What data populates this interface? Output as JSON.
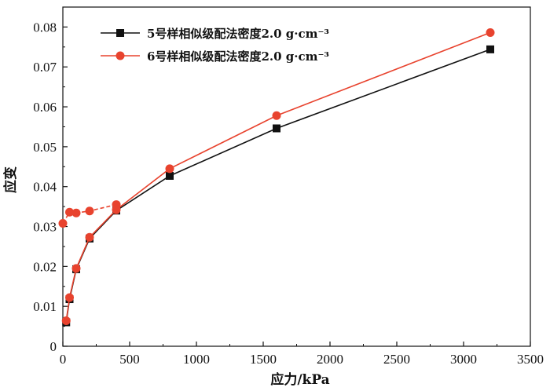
{
  "chart_data": {
    "type": "line",
    "xlabel": "应力/kPa",
    "ylabel": "应变",
    "xlim": [
      0,
      3500
    ],
    "ylim": [
      0,
      0.085
    ],
    "xticks": [
      0,
      500,
      1000,
      1500,
      2000,
      2500,
      3000,
      3500
    ],
    "yticks": [
      0,
      0.01,
      0.02,
      0.03,
      0.04,
      0.05,
      0.06,
      0.07,
      0.08
    ],
    "xtick_labels": [
      "0",
      "500",
      "1000",
      "1500",
      "2000",
      "2500",
      "3000",
      "3500"
    ],
    "ytick_labels": [
      "0",
      "0.01",
      "0.02",
      "0.03",
      "0.04",
      "0.05",
      "0.06",
      "0.07",
      "0.08"
    ],
    "legend_position": "top-left",
    "grid": false,
    "series": [
      {
        "name": "5号样相似级配法密度2.0 g·cm⁻³",
        "color": "#111111",
        "marker": "square",
        "points": [
          {
            "x": 25,
            "y": 0.006
          },
          {
            "x": 50,
            "y": 0.0118
          },
          {
            "x": 100,
            "y": 0.0193
          },
          {
            "x": 200,
            "y": 0.027
          },
          {
            "x": 400,
            "y": 0.034
          },
          {
            "x": 800,
            "y": 0.0427
          },
          {
            "x": 1600,
            "y": 0.0546
          },
          {
            "x": 3200,
            "y": 0.0744
          }
        ]
      },
      {
        "name": "6号样相似级配法密度2.0 g·cm⁻³",
        "color": "#e8432e",
        "marker": "circle",
        "points": [
          {
            "x": 25,
            "y": 0.0064
          },
          {
            "x": 50,
            "y": 0.0122
          },
          {
            "x": 100,
            "y": 0.0195
          },
          {
            "x": 200,
            "y": 0.0273
          },
          {
            "x": 400,
            "y": 0.0342
          },
          {
            "x": 800,
            "y": 0.0445
          },
          {
            "x": 1600,
            "y": 0.0578
          },
          {
            "x": 3200,
            "y": 0.0786
          }
        ],
        "unloading_points": [
          {
            "x": 400,
            "y": 0.0355
          },
          {
            "x": 200,
            "y": 0.0339
          },
          {
            "x": 100,
            "y": 0.0334
          },
          {
            "x": 50,
            "y": 0.0336
          },
          {
            "x": 0,
            "y": 0.0308
          }
        ]
      }
    ]
  }
}
